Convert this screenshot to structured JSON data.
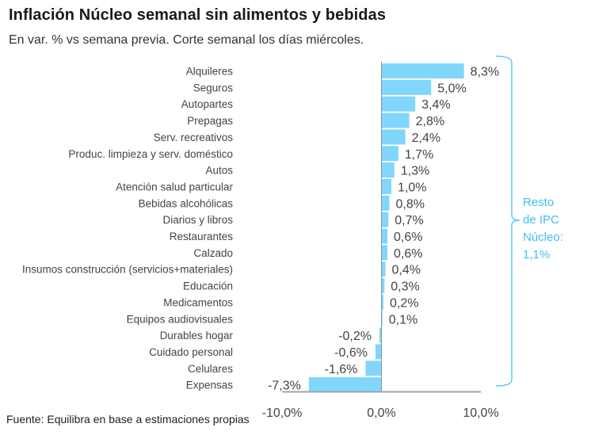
{
  "header": {
    "title": "Inflación Núcleo semanal sin alimentos y bebidas",
    "subtitle": "En var. % vs semana previa. Corte semanal los días miércoles."
  },
  "footer": {
    "source": "Fuente: Equilibra en base a estimaciones propias"
  },
  "colors": {
    "bar": "#80d6fb",
    "axis": "#9aa7ab",
    "brace": "#5ccaf5",
    "note": "#3fc0f0"
  },
  "chart_data": {
    "type": "bar",
    "orientation": "horizontal",
    "title": "Inflación Núcleo semanal sin alimentos y bebidas",
    "subtitle": "En var. % vs semana previa. Corte semanal los días miércoles.",
    "xlabel": "",
    "ylabel": "",
    "xlim": [
      -10,
      10
    ],
    "x_ticks": [
      -10,
      0,
      10
    ],
    "x_tick_labels": [
      "-10,0%",
      "0,0%",
      "10,0%"
    ],
    "grid": false,
    "categories": [
      "Alquileres",
      "Seguros",
      "Autopartes",
      "Prepagas",
      "Serv. recreativos",
      "Produc. limpieza y serv. doméstico",
      "Autos",
      "Atención salud particular",
      "Bebidas alcohólicas",
      "Diarios y libros",
      "Restaurantes",
      "Calzado",
      "Insumos construcción (servicios+materiales)",
      "Educación",
      "Medicamentos",
      "Equipos audiovisuales ",
      "Durables hogar",
      "Cuidado personal",
      "Celulares",
      "Expensas"
    ],
    "values": [
      8.3,
      5.0,
      3.4,
      2.8,
      2.4,
      1.7,
      1.3,
      1.0,
      0.8,
      0.7,
      0.6,
      0.6,
      0.4,
      0.3,
      0.2,
      0.1,
      -0.2,
      -0.6,
      -1.6,
      -7.3
    ],
    "value_labels": [
      "8,3%",
      "5,0%",
      "3,4%",
      "2,8%",
      "2,4%",
      "1,7%",
      "1,3%",
      "1,0%",
      "0,8%",
      "0,7%",
      "0,6%",
      "0,6%",
      "0,4%",
      "0,3%",
      "0,2%",
      "0,1%",
      "-0,2%",
      "-0,6%",
      "-1,6%",
      "-7,3%"
    ],
    "annotation": {
      "lines": [
        "Resto",
        "de IPC",
        "Núcleo:",
        "1,1%"
      ],
      "value": 1.1,
      "placement": "right, with brace spanning all categories"
    }
  }
}
